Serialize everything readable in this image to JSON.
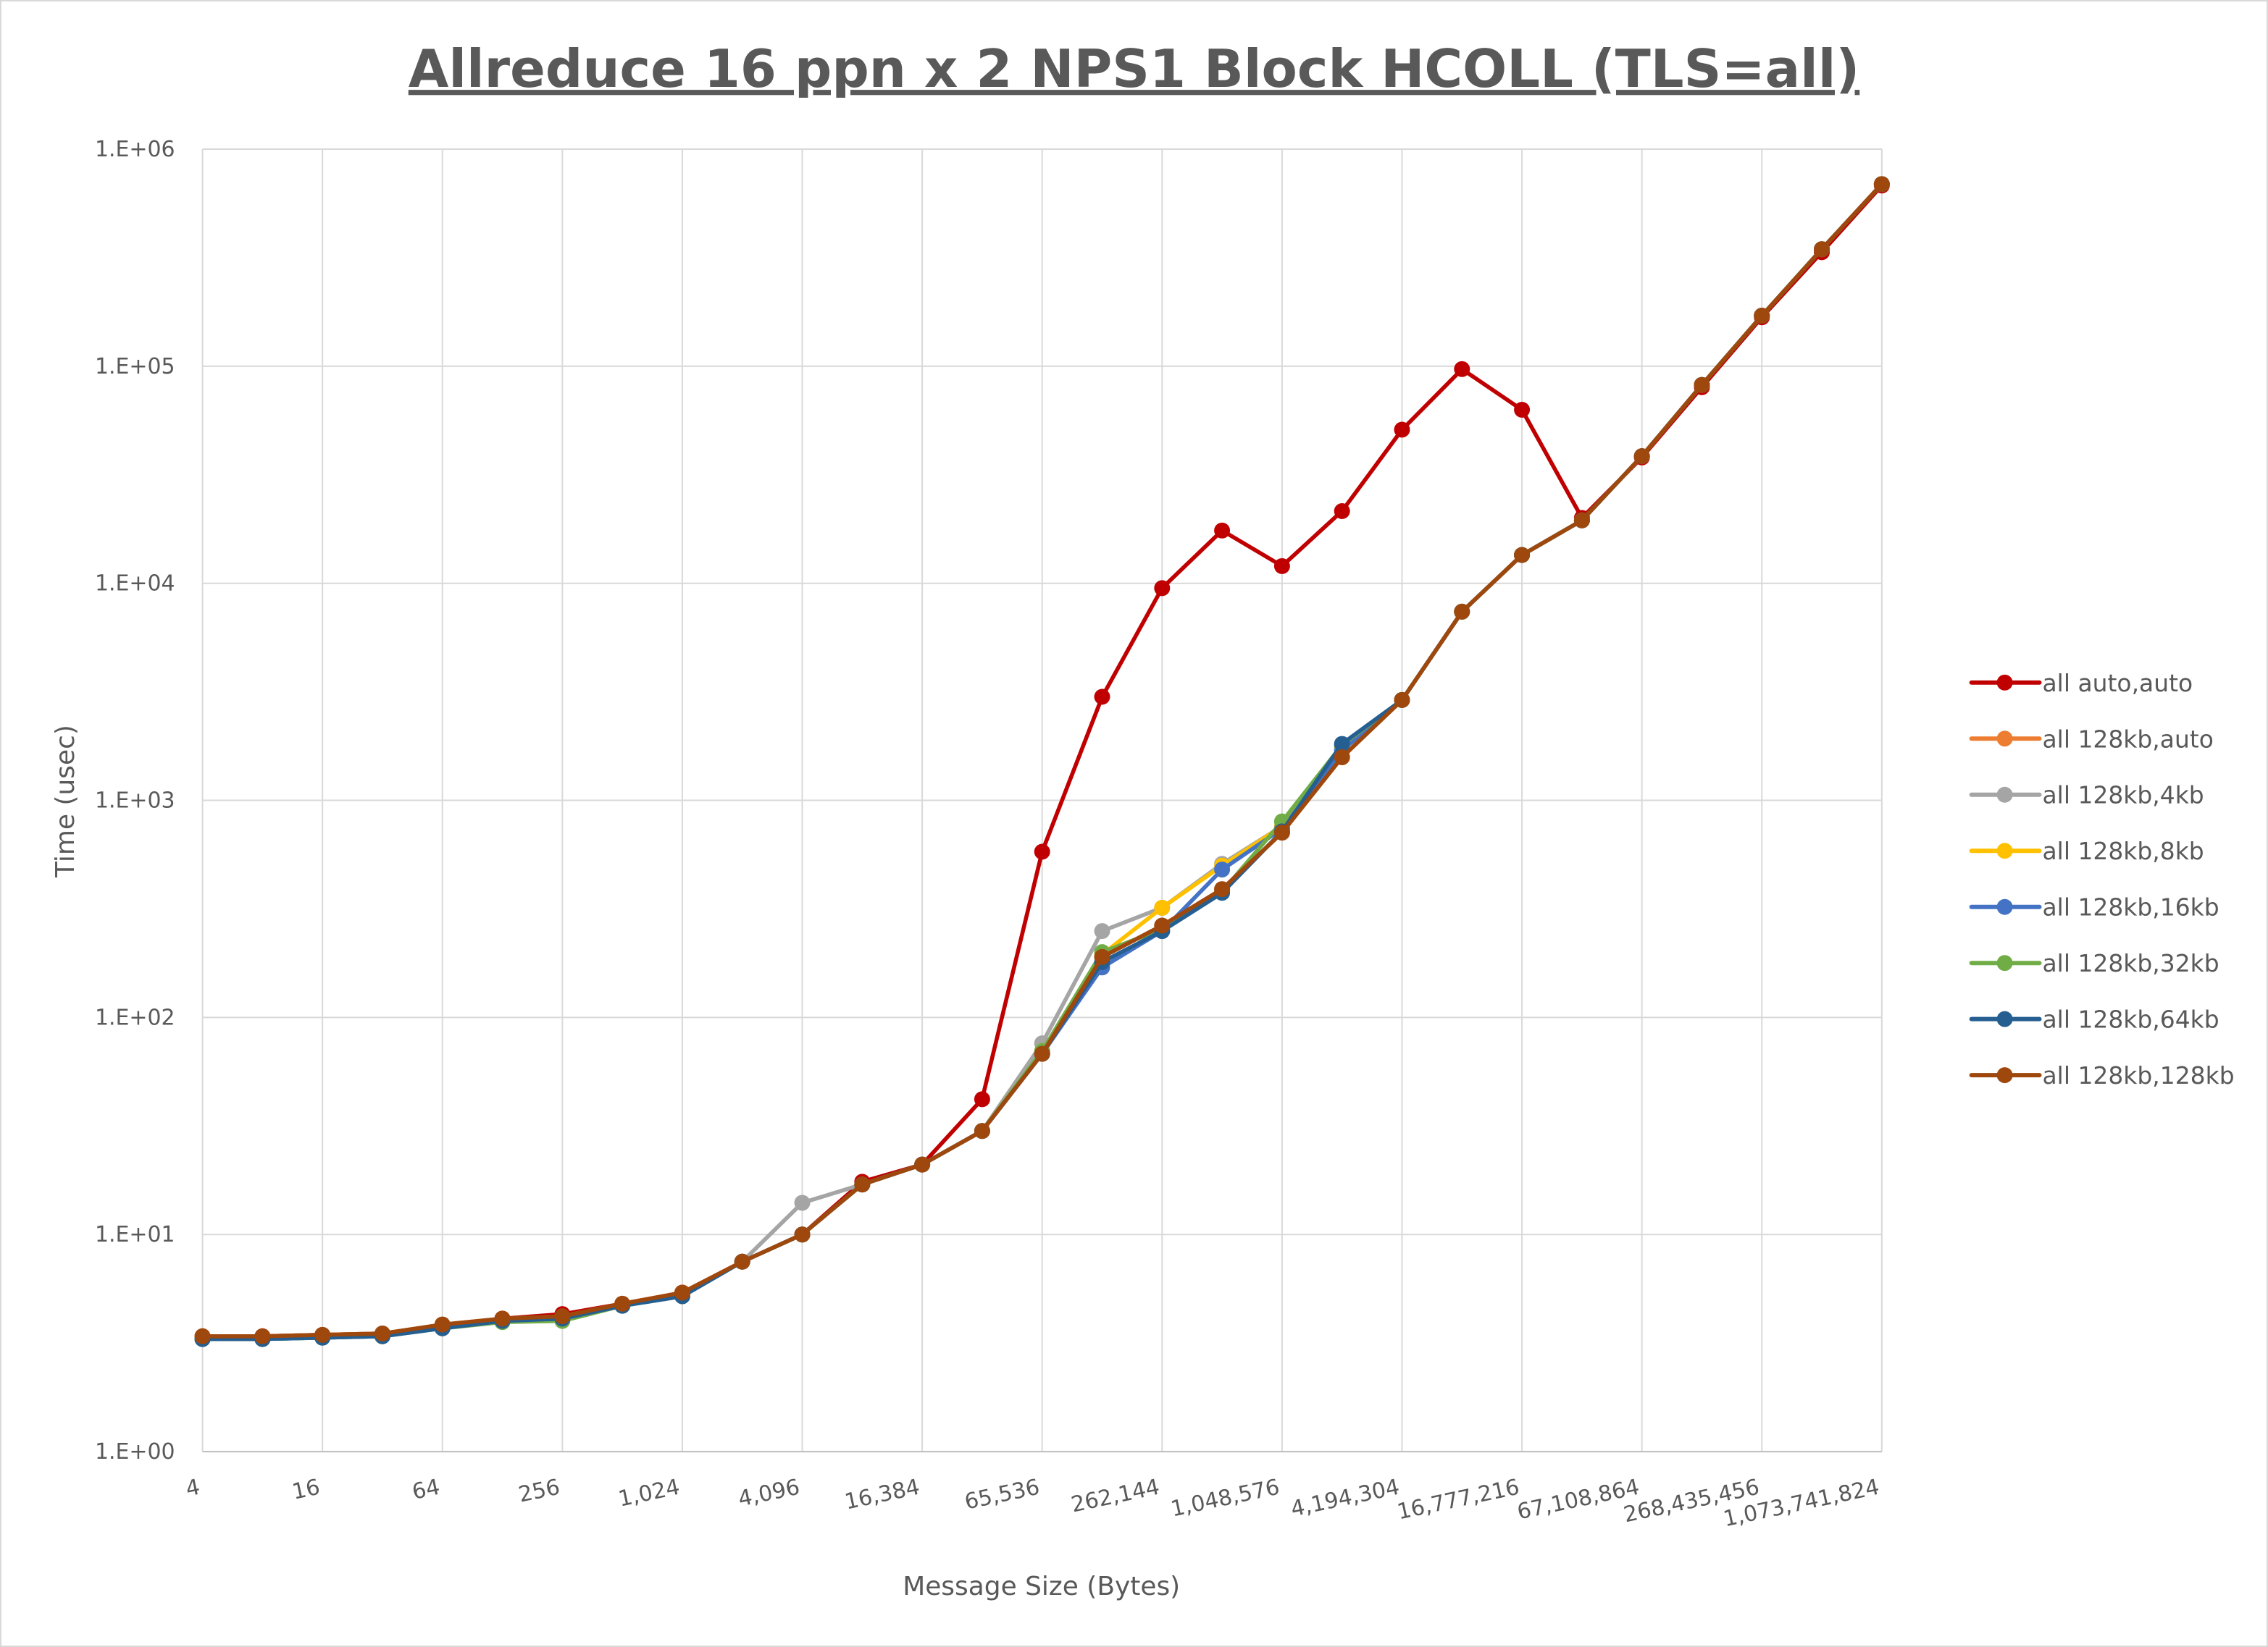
{
  "chart_data": {
    "type": "line",
    "title": "Allreduce 16 ppn x 2 NPS1 Block HCOLL (TLS=all)",
    "xlabel": "Message Size (Bytes)",
    "ylabel": "Time (usec)",
    "x_scale": "log2",
    "y_scale": "log10",
    "ylim": [
      1,
      1000000
    ],
    "grid": true,
    "legend_position": "right",
    "x": [
      4,
      8,
      16,
      32,
      64,
      128,
      256,
      512,
      1024,
      2048,
      4096,
      8192,
      16384,
      32768,
      65536,
      131072,
      262144,
      524288,
      1048576,
      2097152,
      4194304,
      8388608,
      16777216,
      33554432,
      67108864,
      134217728,
      268435456,
      536870912,
      1073741824
    ],
    "x_tick_labels": [
      "4",
      "16",
      "64",
      "256",
      "1,024",
      "4,096",
      "16,384",
      "65,536",
      "262,144",
      "1,048,576",
      "4,194,304",
      "16,777,216",
      "67,108,864",
      "268,435,456",
      "1,073,741,824"
    ],
    "y_tick_labels": [
      "1.E+00",
      "1.E+01",
      "1.E+02",
      "1.E+03",
      "1.E+04",
      "1.E+05",
      "1.E+06"
    ],
    "series": [
      {
        "name": "all auto,auto",
        "color": "#C00000",
        "values": [
          3.4,
          3.4,
          3.45,
          3.5,
          3.8,
          4.1,
          4.3,
          4.8,
          5.4,
          7.5,
          10,
          17.5,
          21,
          42,
          580,
          3000,
          9500,
          17500,
          12000,
          21500,
          51000,
          97000,
          63000,
          20000,
          38000,
          80000,
          168000,
          335000,
          680000
        ]
      },
      {
        "name": "all 128kb,auto",
        "color": "#ED7D31",
        "values": [
          3.4,
          3.4,
          3.45,
          3.5,
          3.85,
          4.1,
          4.2,
          4.8,
          5.4,
          7.5,
          10,
          17,
          21,
          30,
          68,
          190,
          265,
          390,
          710,
          1580,
          2900,
          7400,
          13500,
          19500,
          38500,
          82000,
          171000,
          346000,
          690000
        ]
      },
      {
        "name": "all 128kb,4kb",
        "color": "#A5A5A5",
        "values": [
          3.3,
          3.3,
          3.4,
          3.45,
          3.75,
          4.0,
          4.1,
          4.7,
          5.3,
          7.5,
          14,
          17,
          21,
          30,
          76,
          250,
          320,
          510,
          760,
          1750,
          2900,
          7400,
          13500,
          19500,
          38500,
          82000,
          171000,
          346000,
          690000
        ]
      },
      {
        "name": "all 128kb,8kb",
        "color": "#FFC000",
        "values": [
          3.35,
          3.35,
          3.4,
          3.45,
          3.8,
          4.05,
          4.15,
          4.75,
          5.3,
          7.5,
          10,
          17,
          21,
          30,
          70,
          195,
          320,
          500,
          760,
          1780,
          2900,
          7400,
          13500,
          19500,
          38500,
          82000,
          171000,
          346000,
          690000
        ]
      },
      {
        "name": "all 128kb,16kb",
        "color": "#4472C4",
        "values": [
          3.3,
          3.3,
          3.35,
          3.4,
          3.7,
          4.0,
          4.1,
          4.7,
          5.2,
          7.5,
          10,
          17,
          21,
          30,
          68,
          170,
          250,
          480,
          740,
          1700,
          2900,
          7400,
          13500,
          19500,
          38500,
          82000,
          171000,
          346000,
          690000
        ]
      },
      {
        "name": "all 128kb,32kb",
        "color": "#70AD47",
        "values": [
          3.3,
          3.3,
          3.35,
          3.4,
          3.7,
          3.95,
          4.0,
          4.7,
          5.2,
          7.5,
          10,
          17,
          21,
          30,
          70,
          200,
          255,
          380,
          800,
          1800,
          2900,
          7400,
          13500,
          19500,
          38500,
          82000,
          171000,
          346000,
          690000
        ]
      },
      {
        "name": "all 128kb,64kb",
        "color": "#255E91",
        "values": [
          3.3,
          3.3,
          3.35,
          3.4,
          3.7,
          4.0,
          4.1,
          4.7,
          5.2,
          7.5,
          10,
          17,
          21,
          30,
          68,
          180,
          250,
          375,
          720,
          1820,
          2900,
          7400,
          13500,
          19500,
          38500,
          82000,
          171000,
          346000,
          690000
        ]
      },
      {
        "name": "all 128kb,128kb",
        "color": "#9E480E",
        "values": [
          3.4,
          3.4,
          3.45,
          3.5,
          3.85,
          4.1,
          4.2,
          4.8,
          5.4,
          7.5,
          10,
          17,
          21,
          30,
          68,
          190,
          265,
          390,
          710,
          1580,
          2900,
          7400,
          13500,
          19500,
          38500,
          82000,
          171000,
          346000,
          690000
        ]
      }
    ]
  }
}
